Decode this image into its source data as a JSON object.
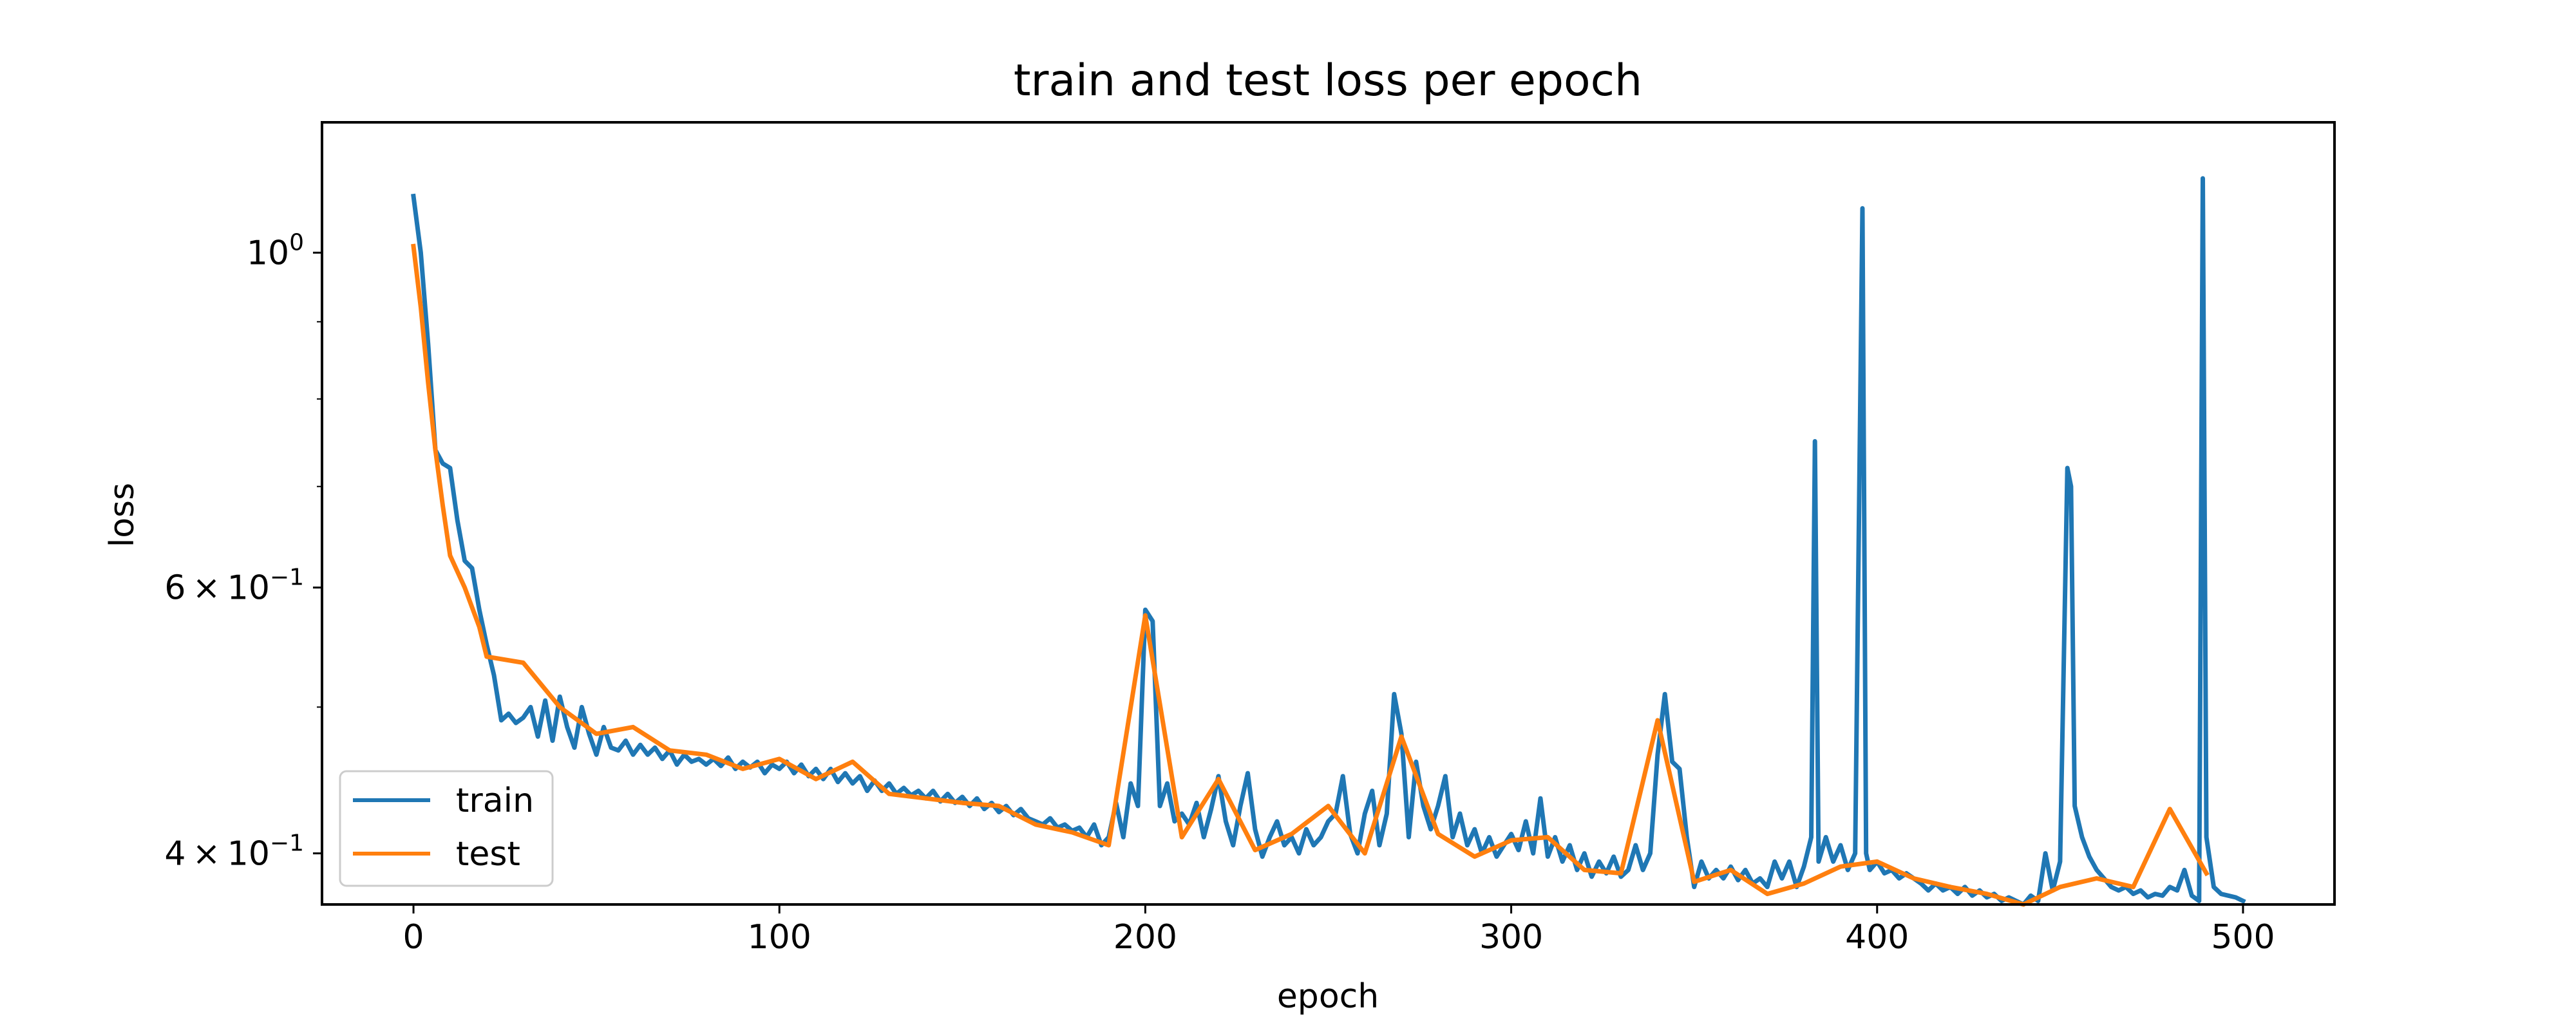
{
  "chart_data": {
    "type": "line",
    "title": "train and test loss per epoch",
    "xlabel": "epoch",
    "ylabel": "loss",
    "yscale": "log",
    "xlim": [
      -25,
      525
    ],
    "ylim": [
      0.37,
      1.22
    ],
    "x_ticks": [
      {
        "value": 0,
        "label": "0"
      },
      {
        "value": 100,
        "label": "100"
      },
      {
        "value": 200,
        "label": "200"
      },
      {
        "value": 300,
        "label": "300"
      },
      {
        "value": 400,
        "label": "400"
      },
      {
        "value": 500,
        "label": "500"
      }
    ],
    "y_ticks": [
      {
        "value": 0.4,
        "base": "4",
        "mult": "×",
        "exp_base": "10",
        "exp": "−1"
      },
      {
        "value": 0.6,
        "base": "6",
        "mult": "×",
        "exp_base": "10",
        "exp": "−1"
      },
      {
        "value": 1.0,
        "base": "",
        "mult": "",
        "exp_base": "10",
        "exp": "0"
      }
    ],
    "y_minor_ticks": [
      0.5,
      0.7,
      0.8,
      0.9
    ],
    "legend_position": "lower-left",
    "grid": false,
    "series": [
      {
        "name": "train",
        "color": "#1f77b4",
        "points": [
          [
            0,
            1.09
          ],
          [
            2,
            1.0
          ],
          [
            4,
            0.87
          ],
          [
            6,
            0.74
          ],
          [
            8,
            0.725
          ],
          [
            10,
            0.72
          ],
          [
            12,
            0.665
          ],
          [
            14,
            0.625
          ],
          [
            16,
            0.618
          ],
          [
            18,
            0.58
          ],
          [
            20,
            0.55
          ],
          [
            22,
            0.525
          ],
          [
            24,
            0.49
          ],
          [
            26,
            0.495
          ],
          [
            28,
            0.488
          ],
          [
            30,
            0.492
          ],
          [
            32,
            0.5
          ],
          [
            34,
            0.478
          ],
          [
            36,
            0.505
          ],
          [
            38,
            0.475
          ],
          [
            40,
            0.508
          ],
          [
            42,
            0.485
          ],
          [
            44,
            0.47
          ],
          [
            46,
            0.5
          ],
          [
            48,
            0.48
          ],
          [
            50,
            0.465
          ],
          [
            52,
            0.485
          ],
          [
            54,
            0.47
          ],
          [
            56,
            0.468
          ],
          [
            58,
            0.475
          ],
          [
            60,
            0.465
          ],
          [
            62,
            0.472
          ],
          [
            64,
            0.465
          ],
          [
            66,
            0.47
          ],
          [
            68,
            0.462
          ],
          [
            70,
            0.468
          ],
          [
            72,
            0.458
          ],
          [
            74,
            0.465
          ],
          [
            76,
            0.46
          ],
          [
            78,
            0.462
          ],
          [
            80,
            0.458
          ],
          [
            82,
            0.462
          ],
          [
            84,
            0.457
          ],
          [
            86,
            0.463
          ],
          [
            88,
            0.455
          ],
          [
            90,
            0.46
          ],
          [
            92,
            0.456
          ],
          [
            94,
            0.46
          ],
          [
            96,
            0.452
          ],
          [
            98,
            0.458
          ],
          [
            100,
            0.455
          ],
          [
            102,
            0.46
          ],
          [
            104,
            0.452
          ],
          [
            106,
            0.458
          ],
          [
            108,
            0.45
          ],
          [
            110,
            0.455
          ],
          [
            112,
            0.448
          ],
          [
            114,
            0.455
          ],
          [
            116,
            0.446
          ],
          [
            118,
            0.452
          ],
          [
            120,
            0.445
          ],
          [
            122,
            0.45
          ],
          [
            124,
            0.44
          ],
          [
            126,
            0.447
          ],
          [
            128,
            0.44
          ],
          [
            130,
            0.445
          ],
          [
            132,
            0.438
          ],
          [
            134,
            0.442
          ],
          [
            136,
            0.437
          ],
          [
            138,
            0.44
          ],
          [
            140,
            0.435
          ],
          [
            142,
            0.44
          ],
          [
            144,
            0.433
          ],
          [
            146,
            0.438
          ],
          [
            148,
            0.432
          ],
          [
            150,
            0.436
          ],
          [
            152,
            0.43
          ],
          [
            154,
            0.435
          ],
          [
            156,
            0.428
          ],
          [
            158,
            0.432
          ],
          [
            160,
            0.426
          ],
          [
            162,
            0.43
          ],
          [
            164,
            0.424
          ],
          [
            166,
            0.428
          ],
          [
            168,
            0.422
          ],
          [
            170,
            0.42
          ],
          [
            172,
            0.418
          ],
          [
            174,
            0.422
          ],
          [
            176,
            0.416
          ],
          [
            178,
            0.418
          ],
          [
            180,
            0.414
          ],
          [
            182,
            0.416
          ],
          [
            184,
            0.41
          ],
          [
            186,
            0.418
          ],
          [
            188,
            0.405
          ],
          [
            190,
            0.41
          ],
          [
            192,
            0.432
          ],
          [
            194,
            0.41
          ],
          [
            196,
            0.445
          ],
          [
            198,
            0.43
          ],
          [
            200,
            0.58
          ],
          [
            202,
            0.57
          ],
          [
            204,
            0.43
          ],
          [
            206,
            0.445
          ],
          [
            208,
            0.42
          ],
          [
            210,
            0.425
          ],
          [
            212,
            0.418
          ],
          [
            214,
            0.432
          ],
          [
            216,
            0.41
          ],
          [
            218,
            0.428
          ],
          [
            220,
            0.45
          ],
          [
            222,
            0.42
          ],
          [
            224,
            0.405
          ],
          [
            226,
            0.43
          ],
          [
            228,
            0.452
          ],
          [
            230,
            0.415
          ],
          [
            232,
            0.398
          ],
          [
            234,
            0.41
          ],
          [
            236,
            0.42
          ],
          [
            238,
            0.405
          ],
          [
            240,
            0.41
          ],
          [
            242,
            0.4
          ],
          [
            244,
            0.415
          ],
          [
            246,
            0.405
          ],
          [
            248,
            0.41
          ],
          [
            250,
            0.42
          ],
          [
            252,
            0.425
          ],
          [
            254,
            0.45
          ],
          [
            256,
            0.412
          ],
          [
            258,
            0.4
          ],
          [
            260,
            0.425
          ],
          [
            262,
            0.44
          ],
          [
            264,
            0.405
          ],
          [
            266,
            0.425
          ],
          [
            268,
            0.51
          ],
          [
            270,
            0.48
          ],
          [
            272,
            0.41
          ],
          [
            274,
            0.46
          ],
          [
            276,
            0.43
          ],
          [
            278,
            0.415
          ],
          [
            280,
            0.43
          ],
          [
            282,
            0.45
          ],
          [
            284,
            0.41
          ],
          [
            286,
            0.425
          ],
          [
            288,
            0.405
          ],
          [
            290,
            0.415
          ],
          [
            292,
            0.4
          ],
          [
            294,
            0.41
          ],
          [
            296,
            0.398
          ],
          [
            298,
            0.405
          ],
          [
            300,
            0.412
          ],
          [
            302,
            0.402
          ],
          [
            304,
            0.42
          ],
          [
            306,
            0.4
          ],
          [
            308,
            0.435
          ],
          [
            310,
            0.398
          ],
          [
            312,
            0.41
          ],
          [
            314,
            0.395
          ],
          [
            316,
            0.405
          ],
          [
            318,
            0.39
          ],
          [
            320,
            0.4
          ],
          [
            322,
            0.386
          ],
          [
            324,
            0.395
          ],
          [
            326,
            0.388
          ],
          [
            328,
            0.398
          ],
          [
            330,
            0.386
          ],
          [
            332,
            0.39
          ],
          [
            334,
            0.405
          ],
          [
            336,
            0.39
          ],
          [
            338,
            0.4
          ],
          [
            340,
            0.465
          ],
          [
            342,
            0.51
          ],
          [
            344,
            0.46
          ],
          [
            346,
            0.455
          ],
          [
            348,
            0.41
          ],
          [
            350,
            0.38
          ],
          [
            352,
            0.395
          ],
          [
            354,
            0.385
          ],
          [
            356,
            0.39
          ],
          [
            358,
            0.385
          ],
          [
            360,
            0.392
          ],
          [
            362,
            0.384
          ],
          [
            364,
            0.39
          ],
          [
            366,
            0.382
          ],
          [
            368,
            0.385
          ],
          [
            370,
            0.38
          ],
          [
            372,
            0.395
          ],
          [
            374,
            0.385
          ],
          [
            376,
            0.395
          ],
          [
            378,
            0.38
          ],
          [
            380,
            0.392
          ],
          [
            382,
            0.41
          ],
          [
            383,
            0.75
          ],
          [
            384,
            0.395
          ],
          [
            386,
            0.41
          ],
          [
            388,
            0.395
          ],
          [
            390,
            0.405
          ],
          [
            392,
            0.39
          ],
          [
            394,
            0.4
          ],
          [
            396,
            1.07
          ],
          [
            397,
            0.4
          ],
          [
            398,
            0.39
          ],
          [
            400,
            0.395
          ],
          [
            402,
            0.388
          ],
          [
            404,
            0.39
          ],
          [
            406,
            0.385
          ],
          [
            408,
            0.388
          ],
          [
            410,
            0.385
          ],
          [
            412,
            0.382
          ],
          [
            414,
            0.378
          ],
          [
            416,
            0.382
          ],
          [
            418,
            0.378
          ],
          [
            420,
            0.38
          ],
          [
            422,
            0.376
          ],
          [
            424,
            0.38
          ],
          [
            426,
            0.375
          ],
          [
            428,
            0.378
          ],
          [
            430,
            0.374
          ],
          [
            432,
            0.376
          ],
          [
            434,
            0.372
          ],
          [
            436,
            0.374
          ],
          [
            438,
            0.372
          ],
          [
            440,
            0.37
          ],
          [
            442,
            0.375
          ],
          [
            444,
            0.372
          ],
          [
            446,
            0.4
          ],
          [
            448,
            0.378
          ],
          [
            450,
            0.395
          ],
          [
            452,
            0.72
          ],
          [
            453,
            0.7
          ],
          [
            454,
            0.43
          ],
          [
            456,
            0.41
          ],
          [
            458,
            0.398
          ],
          [
            460,
            0.39
          ],
          [
            462,
            0.385
          ],
          [
            464,
            0.38
          ],
          [
            466,
            0.378
          ],
          [
            468,
            0.38
          ],
          [
            470,
            0.376
          ],
          [
            472,
            0.378
          ],
          [
            474,
            0.374
          ],
          [
            476,
            0.376
          ],
          [
            478,
            0.375
          ],
          [
            480,
            0.38
          ],
          [
            482,
            0.378
          ],
          [
            484,
            0.39
          ],
          [
            486,
            0.375
          ],
          [
            488,
            0.372
          ],
          [
            489,
            1.12
          ],
          [
            490,
            0.41
          ],
          [
            492,
            0.38
          ],
          [
            494,
            0.376
          ],
          [
            496,
            0.375
          ],
          [
            498,
            0.374
          ],
          [
            500,
            0.372
          ]
        ]
      },
      {
        "name": "test",
        "color": "#ff7f0e",
        "points": [
          [
            0,
            1.01
          ],
          [
            2,
            0.92
          ],
          [
            4,
            0.82
          ],
          [
            6,
            0.74
          ],
          [
            8,
            0.68
          ],
          [
            10,
            0.63
          ],
          [
            14,
            0.6
          ],
          [
            18,
            0.565
          ],
          [
            20,
            0.54
          ],
          [
            30,
            0.535
          ],
          [
            40,
            0.5
          ],
          [
            50,
            0.48
          ],
          [
            60,
            0.485
          ],
          [
            70,
            0.468
          ],
          [
            80,
            0.465
          ],
          [
            90,
            0.455
          ],
          [
            100,
            0.462
          ],
          [
            110,
            0.448
          ],
          [
            120,
            0.46
          ],
          [
            130,
            0.438
          ],
          [
            140,
            0.435
          ],
          [
            150,
            0.432
          ],
          [
            160,
            0.43
          ],
          [
            170,
            0.418
          ],
          [
            180,
            0.413
          ],
          [
            190,
            0.405
          ],
          [
            200,
            0.575
          ],
          [
            210,
            0.41
          ],
          [
            220,
            0.448
          ],
          [
            230,
            0.402
          ],
          [
            240,
            0.412
          ],
          [
            250,
            0.43
          ],
          [
            260,
            0.4
          ],
          [
            270,
            0.478
          ],
          [
            280,
            0.412
          ],
          [
            290,
            0.398
          ],
          [
            300,
            0.408
          ],
          [
            310,
            0.41
          ],
          [
            320,
            0.39
          ],
          [
            330,
            0.388
          ],
          [
            340,
            0.49
          ],
          [
            350,
            0.383
          ],
          [
            360,
            0.39
          ],
          [
            370,
            0.376
          ],
          [
            380,
            0.382
          ],
          [
            390,
            0.392
          ],
          [
            400,
            0.395
          ],
          [
            410,
            0.385
          ],
          [
            420,
            0.38
          ],
          [
            430,
            0.376
          ],
          [
            440,
            0.37
          ],
          [
            450,
            0.38
          ],
          [
            460,
            0.385
          ],
          [
            470,
            0.38
          ],
          [
            480,
            0.428
          ],
          [
            490,
            0.388
          ]
        ]
      }
    ]
  }
}
